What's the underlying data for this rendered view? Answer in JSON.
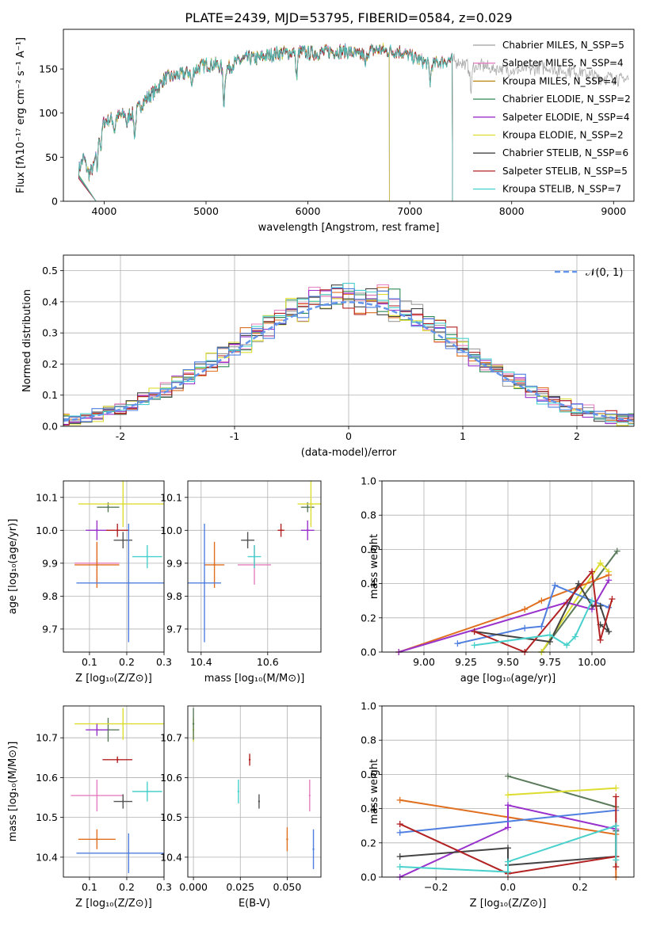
{
  "chart_data": [
    {
      "type": "line",
      "title": "PLATE=2439, MJD=53795, FIBERID=0584, z=0.029",
      "xlabel": "wavelength [Angstrom, rest frame]",
      "ylabel": "Flux [fλ10⁻¹⁷ erg cm⁻² s⁻¹ A⁻¹]",
      "xlim": [
        3600,
        9200
      ],
      "ylim": [
        0,
        195
      ],
      "xticks": [
        4000,
        5000,
        6000,
        7000,
        8000,
        9000
      ],
      "yticks": [
        0,
        50,
        100,
        150
      ],
      "legend_position": "right",
      "series": [
        {
          "name": "Chabrier MILES, N_SSP=5",
          "color": "#9e9e9e",
          "end": 9150
        },
        {
          "name": "Salpeter MILES, N_SSP=4",
          "color": "#e57fbf",
          "end": 7420
        },
        {
          "name": "Kroupa MILES, N_SSP=4",
          "color": "#b8860b",
          "end": 7420
        },
        {
          "name": "Chabrier ELODIE, N_SSP=2",
          "color": "#2e8b57",
          "end": 6800
        },
        {
          "name": "Salpeter ELODIE, N_SSP=4",
          "color": "#9932cc",
          "end": 6800
        },
        {
          "name": "Kroupa ELODIE, N_SSP=2",
          "color": "#dddd30",
          "end": 6800
        },
        {
          "name": "Chabrier STELIB, N_SSP=6",
          "color": "#444444",
          "end": 7420
        },
        {
          "name": "Salpeter STELIB, N_SSP=5",
          "color": "#b22222",
          "end": 7420
        },
        {
          "name": "Kroupa STELIB, N_SSP=7",
          "color": "#48d1cc",
          "end": 7420
        }
      ],
      "continuum_points": [
        [
          3750,
          35
        ],
        [
          3800,
          50
        ],
        [
          3850,
          30
        ],
        [
          3900,
          40
        ],
        [
          3950,
          82
        ],
        [
          4000,
          90
        ],
        [
          4100,
          95
        ],
        [
          4200,
          98
        ],
        [
          4300,
          100
        ],
        [
          4400,
          115
        ],
        [
          4500,
          125
        ],
        [
          4600,
          140
        ],
        [
          4700,
          142
        ],
        [
          4800,
          145
        ],
        [
          4900,
          150
        ],
        [
          5000,
          155
        ],
        [
          5100,
          155
        ],
        [
          5200,
          150
        ],
        [
          5300,
          158
        ],
        [
          5400,
          162
        ],
        [
          5500,
          162
        ],
        [
          5600,
          165
        ],
        [
          5700,
          168
        ],
        [
          5800,
          168
        ],
        [
          5900,
          170
        ],
        [
          6000,
          168
        ],
        [
          6100,
          168
        ],
        [
          6200,
          170
        ],
        [
          6300,
          170
        ],
        [
          6400,
          170
        ],
        [
          6500,
          165
        ],
        [
          6600,
          170
        ],
        [
          6700,
          172
        ],
        [
          6800,
          170
        ],
        [
          6900,
          170
        ],
        [
          7000,
          165
        ],
        [
          7100,
          160
        ],
        [
          7200,
          155
        ],
        [
          7300,
          158
        ],
        [
          7400,
          160
        ],
        [
          7500,
          158
        ],
        [
          7600,
          150
        ],
        [
          7700,
          155
        ],
        [
          7800,
          150
        ],
        [
          7900,
          150
        ],
        [
          8000,
          148
        ],
        [
          8100,
          148
        ],
        [
          8200,
          150
        ],
        [
          8300,
          152
        ],
        [
          8400,
          150
        ],
        [
          8500,
          148
        ],
        [
          8600,
          148
        ],
        [
          8700,
          145
        ],
        [
          8800,
          142
        ],
        [
          8900,
          140
        ],
        [
          9000,
          140
        ],
        [
          9150,
          138
        ]
      ],
      "absorption_features": [
        [
          3933,
          -30
        ],
        [
          3968,
          -25
        ],
        [
          4102,
          -15
        ],
        [
          4226,
          -12
        ],
        [
          4300,
          -25
        ],
        [
          4861,
          -18
        ],
        [
          5175,
          -40
        ],
        [
          5890,
          -30
        ],
        [
          6563,
          -15
        ],
        [
          7200,
          -20
        ],
        [
          7600,
          -25
        ]
      ]
    },
    {
      "type": "step",
      "xlabel": "(data-model)/error",
      "ylabel": "Normed distribution",
      "xlim": [
        -2.5,
        2.5
      ],
      "ylim": [
        0,
        0.55
      ],
      "xticks": [
        -2,
        -1,
        0,
        1,
        2
      ],
      "yticks": [
        0.0,
        0.1,
        0.2,
        0.3,
        0.4,
        0.5
      ],
      "legend": "𝒩(0, 1)",
      "bin_width": 0.1,
      "colors": [
        "#9e9e9e",
        "#e57fbf",
        "#e07020",
        "#2e8b57",
        "#9932cc",
        "#dddd30",
        "#444444",
        "#b22222",
        "#48d1cc",
        "#4f7fdf"
      ]
    },
    {
      "type": "scatter",
      "xlabel": "Z [log₁₀(Z/Z⊙)]",
      "ylabel": "age  [log₁₀(age/yr)]",
      "xlim": [
        0.03,
        0.3
      ],
      "ylim": [
        9.63,
        10.15
      ],
      "xticks": [
        0.1,
        0.2,
        0.3
      ],
      "yticks": [
        9.7,
        9.8,
        9.9,
        10.0,
        10.1
      ],
      "points": [
        {
          "x": 0.15,
          "y": 10.07,
          "xerr": 0.03,
          "yerr": 0.015,
          "color": "#5a7a5a"
        },
        {
          "x": 0.12,
          "y": 9.9,
          "xerr": 0.06,
          "yerr": 0.06,
          "color": "#e57fbf"
        },
        {
          "x": 0.12,
          "y": 9.895,
          "xerr": 0.06,
          "yerr": 0.07,
          "color": "#e07020"
        },
        {
          "x": 0.19,
          "y": 10.08,
          "xerr": 0.12,
          "yerr": 0.07,
          "color": "#dddd30"
        },
        {
          "x": 0.12,
          "y": 10.0,
          "xerr": 0.03,
          "yerr": 0.03,
          "color": "#9932cc"
        },
        {
          "x": 0.175,
          "y": 10.0,
          "xerr": 0.03,
          "yerr": 0.02,
          "color": "#b22222"
        },
        {
          "x": 0.19,
          "y": 9.97,
          "xerr": 0.025,
          "yerr": 0.025,
          "color": "#555555"
        },
        {
          "x": 0.255,
          "y": 9.92,
          "xerr": 0.04,
          "yerr": 0.035,
          "color": "#48d1cc"
        },
        {
          "x": 0.205,
          "y": 9.84,
          "xerr": 0.14,
          "yerr": 0.18,
          "color": "#4f7fdf"
        }
      ]
    },
    {
      "type": "scatter",
      "xlabel": "mass [log₁₀(M/M⊙)]",
      "xlim": [
        10.36,
        10.76
      ],
      "ylim": [
        9.63,
        10.15
      ],
      "xticks": [
        10.4,
        10.6
      ],
      "yticks": [
        9.7,
        9.8,
        9.9,
        10.0,
        10.1
      ],
      "points": [
        {
          "x": 10.72,
          "y": 10.07,
          "xerr": 0.02,
          "yerr": 0.015,
          "color": "#5a7a5a"
        },
        {
          "x": 10.56,
          "y": 9.895,
          "xerr": 0.05,
          "yerr": 0.06,
          "color": "#e57fbf"
        },
        {
          "x": 10.44,
          "y": 9.895,
          "xerr": 0.03,
          "yerr": 0.07,
          "color": "#e07020"
        },
        {
          "x": 10.73,
          "y": 10.08,
          "xerr": 0.04,
          "yerr": 0.07,
          "color": "#dddd30"
        },
        {
          "x": 10.72,
          "y": 10.0,
          "xerr": 0.02,
          "yerr": 0.03,
          "color": "#9932cc"
        },
        {
          "x": 10.64,
          "y": 10.0,
          "xerr": 0.01,
          "yerr": 0.02,
          "color": "#b22222"
        },
        {
          "x": 10.54,
          "y": 9.97,
          "xerr": 0.02,
          "yerr": 0.025,
          "color": "#555555"
        },
        {
          "x": 10.56,
          "y": 9.92,
          "xerr": 0.02,
          "yerr": 0.035,
          "color": "#48d1cc"
        },
        {
          "x": 10.41,
          "y": 9.84,
          "xerr": 0.05,
          "yerr": 0.18,
          "color": "#4f7fdf"
        }
      ]
    },
    {
      "type": "line",
      "xlabel": "age  [log₁₀(age/yr)]",
      "ylabel": "mass weight",
      "xlim": [
        8.75,
        10.25
      ],
      "ylim": [
        0.0,
        1.0
      ],
      "xticks": [
        9.0,
        9.25,
        9.5,
        9.75,
        10.0
      ],
      "xticklabels": [
        "9.00",
        "9.25",
        "9.50",
        "9.75",
        "10.00"
      ],
      "yticks": [
        0.0,
        0.2,
        0.4,
        0.6,
        0.8,
        1.0
      ],
      "series": [
        {
          "color": "#5a7a5a",
          "points": [
            [
              9.7,
              0.0
            ],
            [
              10.15,
              0.59
            ]
          ]
        },
        {
          "color": "#dddd30",
          "points": [
            [
              9.7,
              0.0
            ],
            [
              10.05,
              0.52
            ],
            [
              10.1,
              0.47
            ]
          ]
        },
        {
          "color": "#e07020",
          "points": [
            [
              8.85,
              0.0
            ],
            [
              9.6,
              0.25
            ],
            [
              9.7,
              0.3
            ],
            [
              10.1,
              0.45
            ]
          ]
        },
        {
          "color": "#9932cc",
          "points": [
            [
              8.85,
              0.0
            ],
            [
              9.85,
              0.29
            ],
            [
              10.0,
              0.25
            ],
            [
              10.1,
              0.42
            ]
          ]
        },
        {
          "color": "#4f7fdf",
          "points": [
            [
              9.2,
              0.05
            ],
            [
              9.6,
              0.14
            ],
            [
              9.7,
              0.15
            ],
            [
              9.78,
              0.39
            ],
            [
              10.1,
              0.26
            ]
          ]
        },
        {
          "color": "#444444",
          "points": [
            [
              9.3,
              0.12
            ],
            [
              9.75,
              0.06
            ],
            [
              9.92,
              0.4
            ],
            [
              10.0,
              0.27
            ],
            [
              10.05,
              0.27
            ],
            [
              10.1,
              0.12
            ],
            [
              10.05,
              0.16
            ]
          ]
        },
        {
          "color": "#b22222",
          "points": [
            [
              9.3,
              0.12
            ],
            [
              9.6,
              0.0
            ],
            [
              10.0,
              0.47
            ],
            [
              10.05,
              0.07
            ],
            [
              10.12,
              0.31
            ]
          ]
        },
        {
          "color": "#48d1cc",
          "points": [
            [
              9.3,
              0.04
            ],
            [
              9.75,
              0.1
            ],
            [
              9.85,
              0.04
            ],
            [
              9.9,
              0.09
            ],
            [
              10.0,
              0.3
            ]
          ]
        }
      ]
    },
    {
      "type": "scatter",
      "xlabel": "Z [log₁₀(Z/Z⊙)]",
      "ylabel": "mass [log₁₀(M/M⊙)]",
      "xlim": [
        0.03,
        0.3
      ],
      "ylim": [
        10.35,
        10.78
      ],
      "xticks": [
        0.1,
        0.2,
        0.3
      ],
      "yticks": [
        10.4,
        10.5,
        10.6,
        10.7
      ],
      "points": [
        {
          "x": 0.15,
          "y": 10.72,
          "xerr": 0.03,
          "yerr": 0.03,
          "color": "#5a7a5a"
        },
        {
          "x": 0.12,
          "y": 10.555,
          "xerr": 0.07,
          "yerr": 0.04,
          "color": "#e57fbf"
        },
        {
          "x": 0.12,
          "y": 10.445,
          "xerr": 0.05,
          "yerr": 0.025,
          "color": "#e07020"
        },
        {
          "x": 0.19,
          "y": 10.735,
          "xerr": 0.13,
          "yerr": 0.04,
          "color": "#dddd30"
        },
        {
          "x": 0.12,
          "y": 10.72,
          "xerr": 0.03,
          "yerr": 0.015,
          "color": "#9932cc"
        },
        {
          "x": 0.175,
          "y": 10.645,
          "xerr": 0.04,
          "yerr": 0.008,
          "color": "#b22222"
        },
        {
          "x": 0.19,
          "y": 10.54,
          "xerr": 0.025,
          "yerr": 0.018,
          "color": "#555555"
        },
        {
          "x": 0.255,
          "y": 10.565,
          "xerr": 0.04,
          "yerr": 0.025,
          "color": "#48d1cc"
        },
        {
          "x": 0.205,
          "y": 10.41,
          "xerr": 0.14,
          "yerr": 0.05,
          "color": "#4f7fdf"
        }
      ]
    },
    {
      "type": "scatter",
      "xlabel": "E(B-V)",
      "xlim": [
        -0.003,
        0.068
      ],
      "ylim": [
        10.35,
        10.78
      ],
      "xticks": [
        0.0,
        0.025,
        0.05
      ],
      "xticklabels": [
        "0.000",
        "0.025",
        "0.050"
      ],
      "yticks": [
        10.4,
        10.5,
        10.6,
        10.7
      ],
      "points": [
        {
          "x": 0.0,
          "y": 10.72,
          "yerr": 0.03,
          "color": "#dddd30"
        },
        {
          "x": 0.0,
          "y": 10.735,
          "yerr": 0.04,
          "color": "#5a7a5a"
        },
        {
          "x": 0.03,
          "y": 10.645,
          "yerr": 0.015,
          "color": "#b22222"
        },
        {
          "x": 0.024,
          "y": 10.565,
          "yerr": 0.03,
          "color": "#48d1cc"
        },
        {
          "x": 0.035,
          "y": 10.54,
          "yerr": 0.018,
          "color": "#555555"
        },
        {
          "x": 0.062,
          "y": 10.555,
          "yerr": 0.04,
          "color": "#e57fbf"
        },
        {
          "x": 0.05,
          "y": 10.445,
          "yerr": 0.03,
          "color": "#e07020"
        },
        {
          "x": 0.064,
          "y": 10.42,
          "yerr": 0.05,
          "color": "#4f7fdf"
        }
      ]
    },
    {
      "type": "line",
      "xlabel": "Z [log₁₀(Z/Z⊙)]",
      "ylabel": "mass weight",
      "xlim": [
        -0.35,
        0.35
      ],
      "ylim": [
        0.0,
        1.0
      ],
      "xticks": [
        -0.2,
        0.0,
        0.2
      ],
      "xticklabels": [
        "−0.2",
        "0.0",
        "0.2"
      ],
      "yticks": [
        0.0,
        0.2,
        0.4,
        0.6,
        0.8,
        1.0
      ],
      "series": [
        {
          "color": "#5a7a5a",
          "points": [
            [
              0.0,
              0.59
            ],
            [
              0.3,
              0.41
            ]
          ]
        },
        {
          "color": "#dddd30",
          "points": [
            [
              0.0,
              0.48
            ],
            [
              0.3,
              0.52
            ]
          ]
        },
        {
          "color": "#e07020",
          "points": [
            [
              -0.3,
              0.45
            ],
            [
              0.3,
              0.25
            ],
            [
              0.3,
              0.0
            ]
          ]
        },
        {
          "color": "#9932cc",
          "points": [
            [
              -0.3,
              0.0
            ],
            [
              0.0,
              0.29
            ],
            [
              0.0,
              0.42
            ],
            [
              0.3,
              0.28
            ]
          ]
        },
        {
          "color": "#4f7fdf",
          "points": [
            [
              -0.3,
              0.26
            ],
            [
              0.3,
              0.39
            ]
          ]
        },
        {
          "color": "#444444",
          "points": [
            [
              -0.3,
              0.12
            ],
            [
              0.0,
              0.17
            ],
            [
              0.0,
              0.07
            ],
            [
              0.3,
              0.12
            ],
            [
              0.3,
              0.27
            ]
          ]
        },
        {
          "color": "#b22222",
          "points": [
            [
              -0.3,
              0.31
            ],
            [
              0.0,
              0.02
            ],
            [
              0.3,
              0.12
            ],
            [
              0.3,
              0.47
            ],
            [
              0.3,
              0.06
            ]
          ]
        },
        {
          "color": "#48d1cc",
          "points": [
            [
              -0.3,
              0.06
            ],
            [
              0.0,
              0.03
            ],
            [
              0.0,
              0.09
            ],
            [
              0.3,
              0.3
            ],
            [
              0.3,
              0.1
            ]
          ]
        }
      ]
    }
  ]
}
